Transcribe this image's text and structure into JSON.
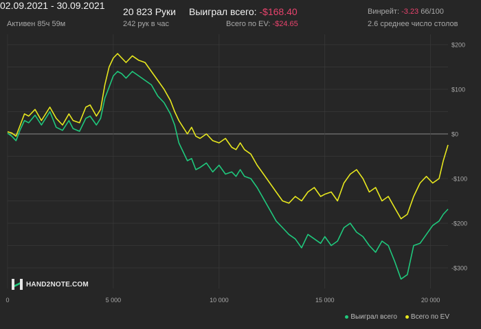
{
  "header": {
    "date_range": "02.09.2021 - 30.09.2021",
    "active": "Активен 85ч 59м",
    "hands": "20 823 Руки",
    "hands_per_hour": "242 рук в час",
    "won_label": "Выиграл всего:",
    "won_value": "-$168.40",
    "ev_label": "Всего по EV:",
    "ev_value": "-$24.65",
    "winrate_label": "Винрейт:",
    "winrate_value": "-3.23",
    "winrate_unit": "66/100",
    "tables": "2.6 среднее число столов"
  },
  "logo": {
    "text": "HAND2NOTE.COM",
    "icon": "hand2note-logo-icon"
  },
  "colors": {
    "won": "#1fc97d",
    "ev": "#e8e81e",
    "negative": "#e8436d",
    "grid": "#3a3a3a",
    "zero": "#8a8a8a"
  },
  "chart_data": {
    "type": "line",
    "xlim": [
      0,
      20823
    ],
    "ylim": [
      -330,
      200
    ],
    "x_ticks": [
      0,
      5000,
      10000,
      15000,
      20000
    ],
    "x_tick_labels": [
      "0",
      "5 000",
      "10 000",
      "15 000",
      "20 000"
    ],
    "y_ticks": [
      200,
      100,
      0,
      -100,
      -200,
      -300
    ],
    "y_tick_labels": [
      "$200",
      "$100",
      "$0",
      "-$100",
      "-$200",
      "-$300"
    ],
    "grid": true,
    "legend_position": "bottom-right",
    "series": [
      {
        "name": "Выиграл всего",
        "color": "#1fc97d",
        "x": [
          0,
          200,
          400,
          600,
          800,
          1000,
          1300,
          1600,
          2000,
          2300,
          2600,
          2900,
          3100,
          3400,
          3700,
          3900,
          4200,
          4400,
          4600,
          4800,
          5000,
          5200,
          5400,
          5600,
          5900,
          6200,
          6500,
          6800,
          7100,
          7400,
          7700,
          7900,
          8100,
          8300,
          8500,
          8700,
          8900,
          9100,
          9400,
          9700,
          10000,
          10300,
          10600,
          10800,
          11000,
          11200,
          11500,
          11800,
          12100,
          12400,
          12700,
          13000,
          13300,
          13600,
          13900,
          14200,
          14500,
          14800,
          15000,
          15300,
          15600,
          15900,
          16200,
          16500,
          16800,
          17100,
          17400,
          17700,
          18000,
          18300,
          18600,
          18900,
          19200,
          19500,
          19800,
          20100,
          20400,
          20600,
          20823
        ],
        "y": [
          2,
          -5,
          -15,
          10,
          30,
          25,
          42,
          20,
          50,
          15,
          8,
          30,
          12,
          6,
          35,
          40,
          20,
          35,
          80,
          105,
          130,
          140,
          135,
          125,
          140,
          130,
          120,
          110,
          85,
          70,
          45,
          20,
          -20,
          -40,
          -60,
          -55,
          -80,
          -75,
          -65,
          -85,
          -70,
          -90,
          -85,
          -95,
          -80,
          -95,
          -100,
          -120,
          -145,
          -170,
          -195,
          -210,
          -225,
          -235,
          -255,
          -225,
          -235,
          -245,
          -230,
          -250,
          -240,
          -210,
          -200,
          -220,
          -230,
          -250,
          -265,
          -240,
          -250,
          -285,
          -325,
          -315,
          -250,
          -245,
          -225,
          -205,
          -195,
          -180,
          -168.4
        ]
      },
      {
        "name": "Всего по EV",
        "color": "#e8e81e",
        "x": [
          0,
          200,
          400,
          600,
          800,
          1000,
          1300,
          1600,
          2000,
          2300,
          2600,
          2900,
          3100,
          3400,
          3700,
          3900,
          4200,
          4400,
          4600,
          4800,
          5000,
          5200,
          5400,
          5600,
          5900,
          6200,
          6500,
          6800,
          7100,
          7400,
          7700,
          7900,
          8100,
          8300,
          8500,
          8700,
          8900,
          9100,
          9400,
          9700,
          10000,
          10300,
          10600,
          10800,
          11000,
          11200,
          11500,
          11800,
          12100,
          12400,
          12700,
          13000,
          13300,
          13600,
          13900,
          14200,
          14500,
          14800,
          15000,
          15300,
          15600,
          15900,
          16200,
          16500,
          16800,
          17100,
          17400,
          17700,
          18000,
          18300,
          18600,
          18900,
          19200,
          19500,
          19800,
          20100,
          20400,
          20600,
          20823
        ],
        "y": [
          5,
          2,
          -5,
          20,
          45,
          40,
          55,
          30,
          60,
          35,
          20,
          45,
          30,
          25,
          60,
          65,
          40,
          55,
          110,
          150,
          170,
          180,
          170,
          160,
          175,
          165,
          160,
          140,
          120,
          100,
          75,
          50,
          30,
          15,
          0,
          15,
          -5,
          -10,
          0,
          -15,
          -20,
          -10,
          -30,
          -35,
          -20,
          -35,
          -45,
          -70,
          -90,
          -110,
          -130,
          -150,
          -155,
          -140,
          -150,
          -130,
          -120,
          -140,
          -135,
          -130,
          -150,
          -110,
          -90,
          -80,
          -100,
          -130,
          -120,
          -150,
          -140,
          -165,
          -190,
          -180,
          -140,
          -110,
          -95,
          -110,
          -100,
          -60,
          -24.65
        ]
      }
    ]
  }
}
